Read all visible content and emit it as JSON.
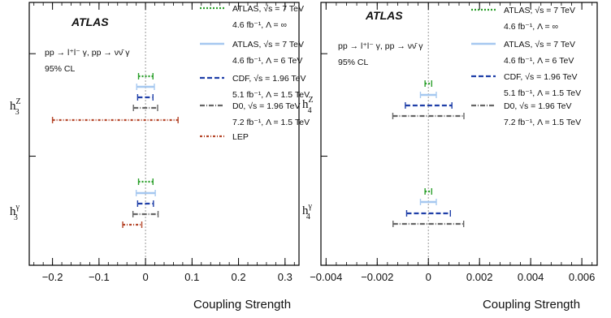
{
  "chart_data": [
    {
      "type": "interval",
      "panel": "left",
      "brand": "ATLAS",
      "process": "pp → l⁺l⁻ γ, pp → νν̄ γ",
      "cl": "95% CL",
      "xlabel": "Coupling Strength",
      "xlim": [
        -0.25,
        0.33
      ],
      "xticks": [
        -0.2,
        -0.1,
        0,
        0.1,
        0.2,
        0.3
      ],
      "xticklabels": [
        "−0.2",
        "−0.1",
        "0",
        "0.1",
        "0.2",
        "0.3"
      ],
      "categories": [
        {
          "label": "h",
          "sup": "Z",
          "sub": "3"
        },
        {
          "label": "h",
          "sup": "γ",
          "sub": "3"
        }
      ],
      "legend": [
        {
          "id": "atlas7inf",
          "lines": [
            "ATLAS, √s = 7 TeV",
            "4.6 fb⁻¹, Λ = ∞"
          ],
          "color": "#2ca02c",
          "dash": "2,2"
        },
        {
          "id": "atlas7",
          "lines": [
            "ATLAS, √s = 7 TeV",
            "4.6 fb⁻¹, Λ = 6 TeV"
          ],
          "color": "#a6c8f0",
          "dash": ""
        },
        {
          "id": "cdf",
          "lines": [
            "CDF, √s = 1.96 TeV",
            "5.1 fb⁻¹, Λ = 1.5 TeV"
          ],
          "color": "#1f3fa8",
          "dash": "6,3"
        },
        {
          "id": "d0",
          "lines": [
            "D0, √s = 1.96 TeV",
            "7.2 fb⁻¹, Λ = 1.5 TeV"
          ],
          "color": "#666666",
          "dash": "6,2,1,2"
        },
        {
          "id": "lep",
          "lines": [
            "LEP"
          ],
          "color": "#b5462a",
          "dash": "3,2,1,2"
        }
      ],
      "series": [
        {
          "id": "atlas7inf",
          "intervals": [
            [
              -0.015,
              0.016
            ],
            [
              -0.015,
              0.016
            ]
          ]
        },
        {
          "id": "atlas7",
          "intervals": [
            [
              -0.019,
              0.019
            ],
            [
              -0.02,
              0.021
            ]
          ]
        },
        {
          "id": "cdf",
          "intervals": [
            [
              -0.017,
              0.016
            ],
            [
              -0.017,
              0.017
            ]
          ]
        },
        {
          "id": "d0",
          "intervals": [
            [
              -0.026,
              0.026
            ],
            [
              -0.027,
              0.027
            ]
          ]
        },
        {
          "id": "lep",
          "intervals": [
            [
              -0.2,
              0.07
            ],
            [
              -0.049,
              -0.008
            ]
          ]
        }
      ]
    },
    {
      "type": "interval",
      "panel": "right",
      "brand": "ATLAS",
      "process": "pp → l⁺l⁻ γ, pp → νν̄ γ",
      "cl": "95% CL",
      "xlabel": "Coupling Strength",
      "xlim": [
        -0.0042,
        0.0066
      ],
      "xticks": [
        -0.004,
        -0.002,
        0,
        0.002,
        0.004,
        0.006
      ],
      "xticklabels": [
        "−0.004",
        "−0.002",
        "0",
        "0.002",
        "0.004",
        "0.006"
      ],
      "categories": [
        {
          "label": "h",
          "sup": "Z",
          "sub": "4"
        },
        {
          "label": "h",
          "sup": "γ",
          "sub": "4"
        }
      ],
      "legend": [
        {
          "id": "atlas7inf",
          "lines": [
            "ATLAS, √s = 7 TeV",
            "4.6 fb⁻¹, Λ = ∞"
          ],
          "color": "#2ca02c",
          "dash": "2,2"
        },
        {
          "id": "atlas7",
          "lines": [
            "ATLAS, √s = 7 TeV",
            "4.6 fb⁻¹, Λ = 6 TeV"
          ],
          "color": "#a6c8f0",
          "dash": ""
        },
        {
          "id": "cdf",
          "lines": [
            "CDF, √s = 1.96 TeV",
            "5.1 fb⁻¹, Λ = 1.5 TeV"
          ],
          "color": "#1f3fa8",
          "dash": "6,3"
        },
        {
          "id": "d0",
          "lines": [
            "D0, √s = 1.96 TeV",
            "7.2 fb⁻¹, Λ = 1.5 TeV"
          ],
          "color": "#666666",
          "dash": "6,2,1,2"
        }
      ],
      "series": [
        {
          "id": "atlas7inf",
          "intervals": [
            [
              -0.00013,
              0.00013
            ],
            [
              -0.00013,
              0.00013
            ]
          ]
        },
        {
          "id": "atlas7",
          "intervals": [
            [
              -0.00031,
              0.00031
            ],
            [
              -0.00031,
              0.00031
            ]
          ]
        },
        {
          "id": "cdf",
          "intervals": [
            [
              -0.0009,
              0.00092
            ],
            [
              -0.00085,
              0.00086
            ]
          ]
        },
        {
          "id": "d0",
          "intervals": [
            [
              -0.00139,
              0.00139
            ],
            [
              -0.00138,
              0.00138
            ]
          ]
        }
      ]
    }
  ]
}
